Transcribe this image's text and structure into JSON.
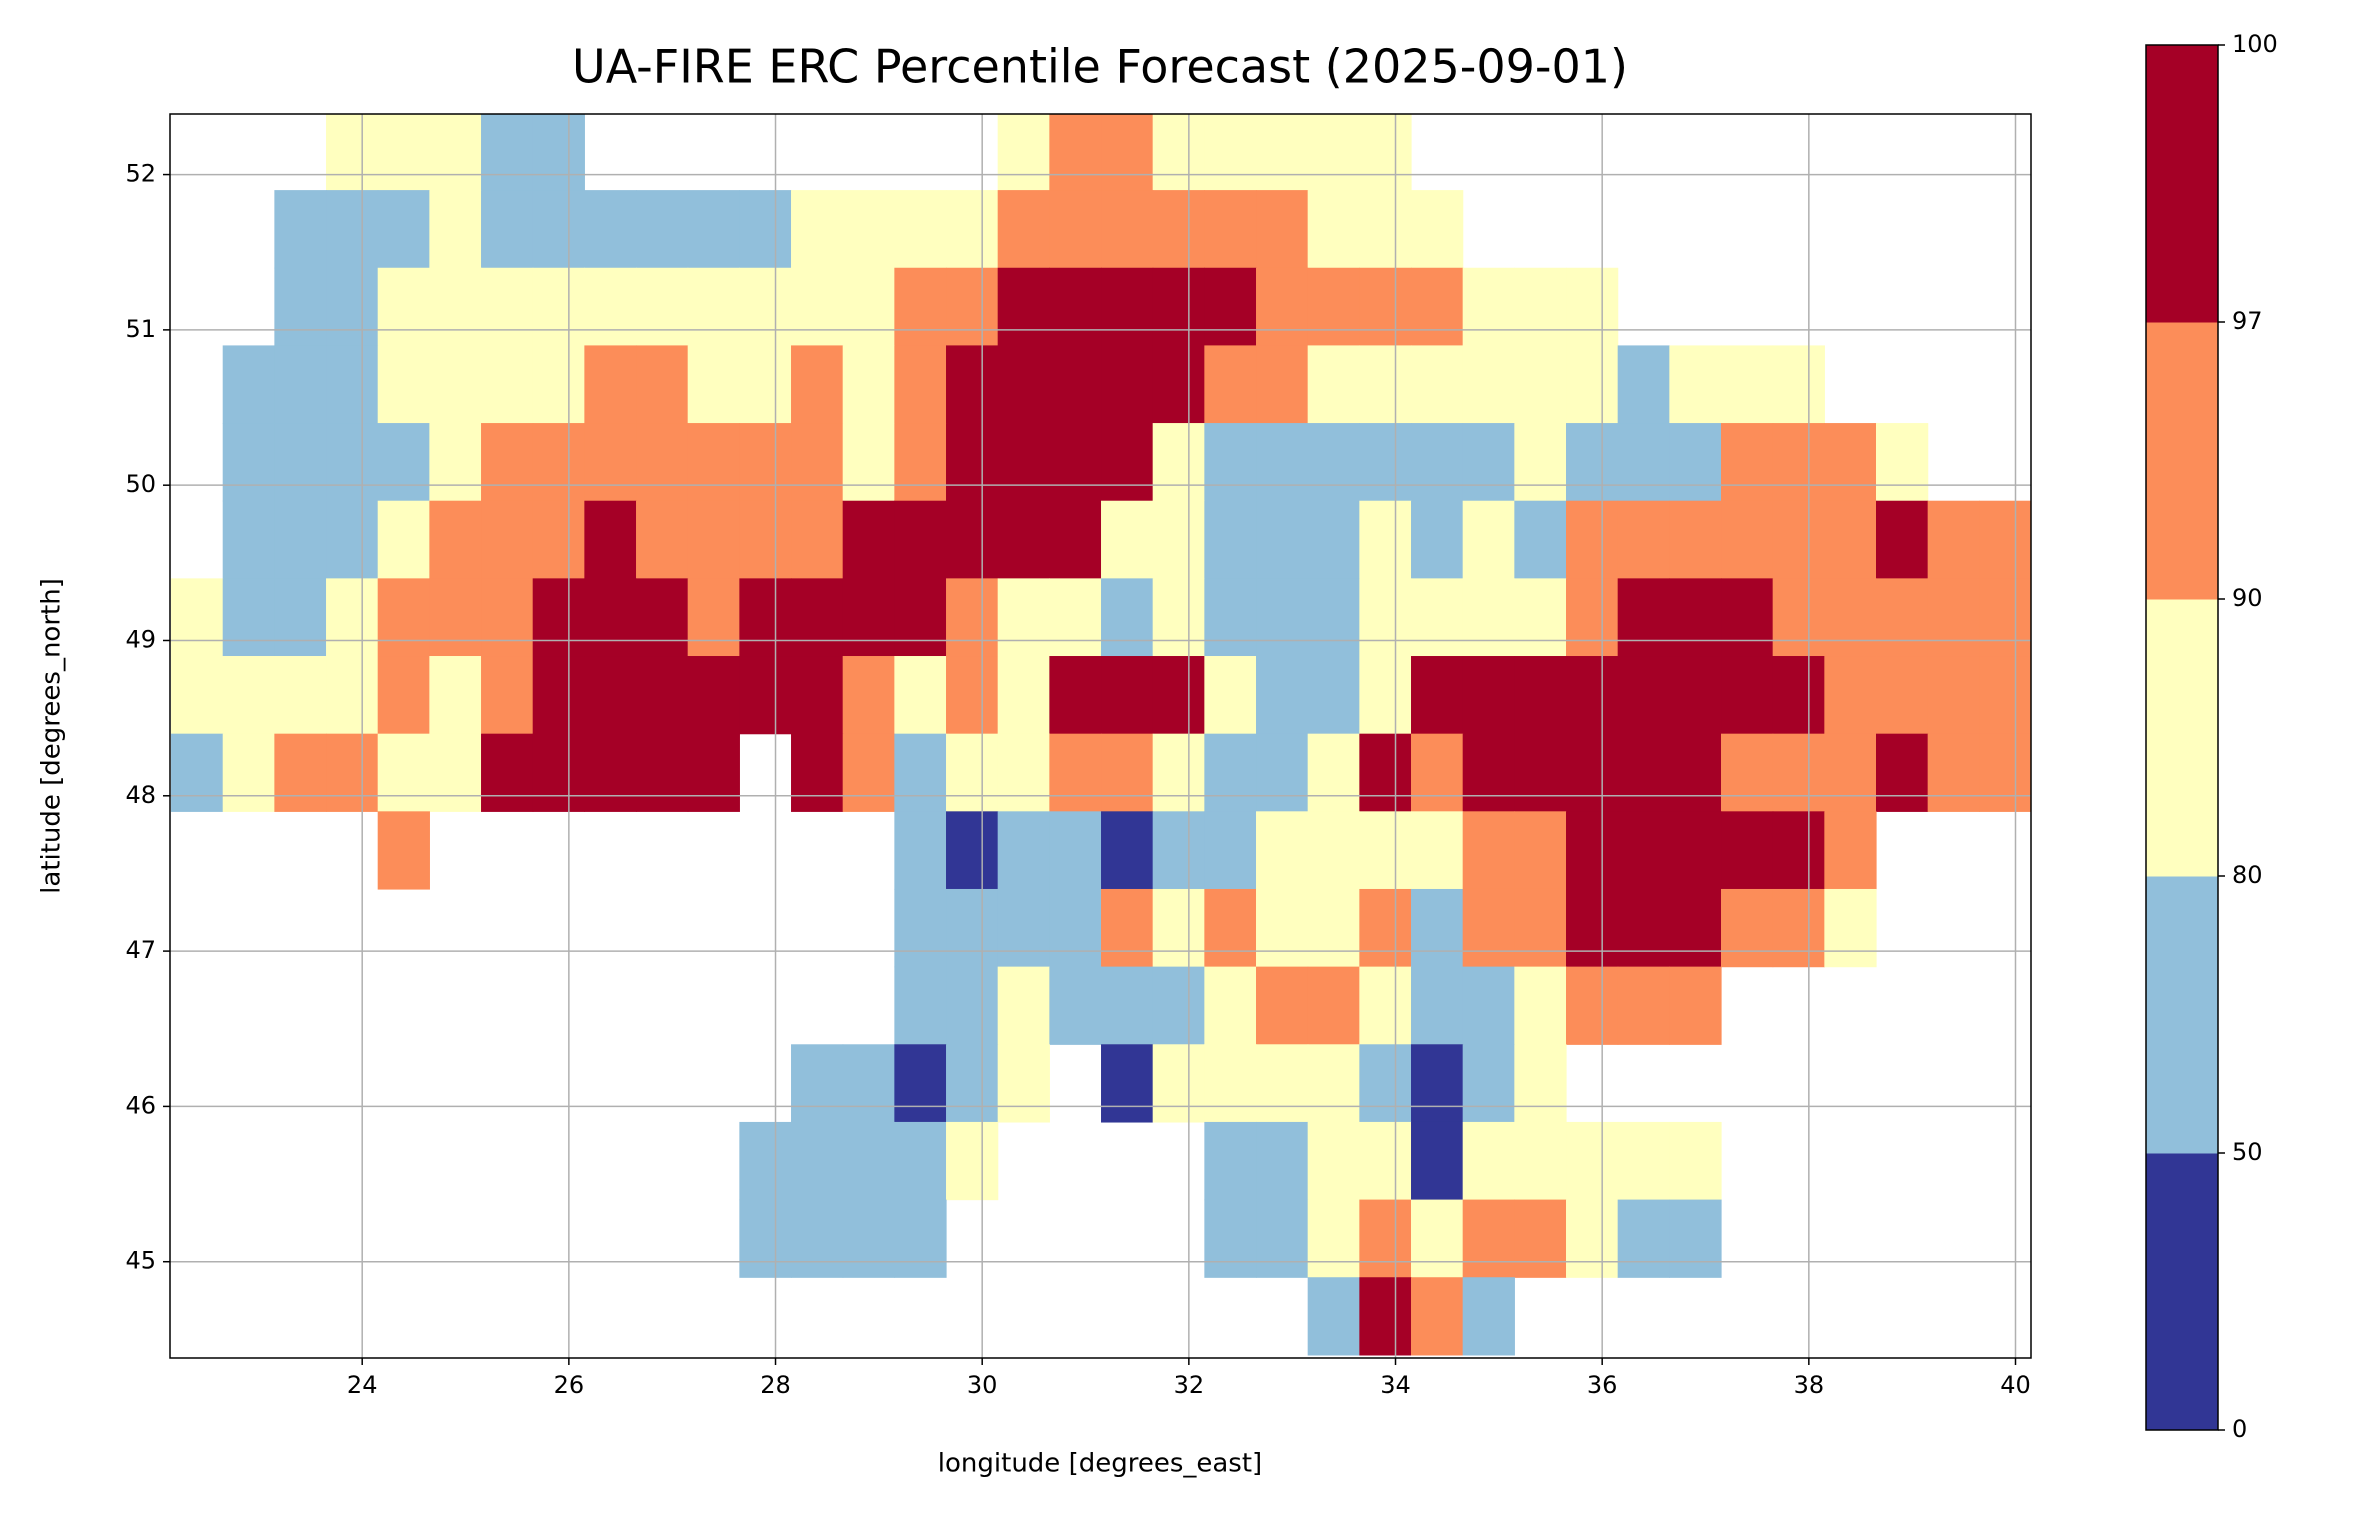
{
  "chart_data": {
    "type": "heatmap",
    "title": "UA-FIRE ERC Percentile Forecast (2025-09-01)",
    "xlabel": "longitude [degrees_east]",
    "ylabel": "latitude [degrees_north]",
    "xlim": [
      22.14,
      40.15
    ],
    "ylim": [
      44.38,
      52.39
    ],
    "xticks": [
      24,
      26,
      28,
      30,
      32,
      34,
      36,
      38,
      40
    ],
    "yticks": [
      45,
      46,
      47,
      48,
      49,
      50,
      51,
      52
    ],
    "grid": true,
    "x": [
      22.4,
      22.9,
      23.4,
      23.9,
      24.4,
      24.9,
      25.4,
      25.9,
      26.4,
      26.9,
      27.4,
      27.9,
      28.4,
      28.9,
      29.4,
      29.9,
      30.4,
      30.9,
      31.4,
      31.9,
      32.4,
      32.9,
      33.4,
      33.9,
      34.4,
      34.9,
      35.4,
      35.9,
      36.4,
      36.9,
      37.4,
      37.9,
      38.4,
      38.9,
      39.4,
      39.9
    ],
    "y": [
      52.15,
      51.65,
      51.15,
      50.65,
      50.15,
      49.65,
      49.15,
      48.65,
      48.15,
      47.65,
      47.15,
      46.65,
      46.15,
      45.65,
      45.15,
      44.65
    ],
    "values": [
      [
        null,
        null,
        null,
        85,
        85,
        85,
        65,
        65,
        null,
        null,
        null,
        null,
        null,
        null,
        null,
        null,
        85,
        93,
        93,
        85,
        85,
        85,
        85,
        85,
        null,
        null,
        null,
        null,
        null,
        null,
        null,
        null,
        null,
        null,
        null,
        null
      ],
      [
        null,
        null,
        65,
        65,
        65,
        85,
        65,
        65,
        65,
        65,
        65,
        65,
        85,
        85,
        85,
        85,
        93,
        93,
        93,
        93,
        93,
        93,
        85,
        85,
        85,
        null,
        null,
        null,
        null,
        null,
        null,
        null,
        null,
        null,
        null,
        null
      ],
      [
        null,
        null,
        65,
        65,
        85,
        85,
        85,
        85,
        85,
        85,
        85,
        85,
        85,
        85,
        93,
        93,
        98,
        98,
        98,
        98,
        98,
        93,
        93,
        93,
        93,
        85,
        85,
        85,
        null,
        null,
        null,
        null,
        null,
        null,
        null,
        null
      ],
      [
        null,
        65,
        65,
        65,
        85,
        85,
        85,
        85,
        93,
        93,
        85,
        85,
        93,
        85,
        93,
        98,
        98,
        98,
        98,
        98,
        93,
        93,
        85,
        85,
        85,
        85,
        85,
        85,
        65,
        85,
        85,
        85,
        null,
        null,
        null,
        null
      ],
      [
        null,
        65,
        65,
        65,
        65,
        85,
        93,
        93,
        93,
        93,
        93,
        93,
        93,
        85,
        93,
        98,
        98,
        98,
        98,
        85,
        65,
        65,
        65,
        65,
        65,
        65,
        85,
        65,
        65,
        65,
        93,
        93,
        93,
        85,
        null,
        null
      ],
      [
        null,
        65,
        65,
        65,
        85,
        93,
        93,
        93,
        98,
        93,
        93,
        93,
        93,
        98,
        98,
        98,
        98,
        98,
        85,
        85,
        65,
        65,
        65,
        85,
        65,
        85,
        65,
        93,
        93,
        93,
        93,
        93,
        93,
        98,
        93,
        93
      ],
      [
        85,
        65,
        65,
        85,
        93,
        93,
        93,
        98,
        98,
        98,
        93,
        98,
        98,
        98,
        98,
        93,
        85,
        85,
        65,
        85,
        65,
        65,
        65,
        85,
        85,
        85,
        85,
        93,
        98,
        98,
        98,
        93,
        93,
        93,
        93,
        93
      ],
      [
        85,
        85,
        85,
        85,
        93,
        85,
        93,
        98,
        98,
        98,
        98,
        98,
        98,
        93,
        85,
        93,
        85,
        98,
        98,
        98,
        85,
        65,
        65,
        85,
        98,
        98,
        98,
        98,
        98,
        98,
        98,
        98,
        93,
        93,
        93,
        93
      ],
      [
        65,
        85,
        93,
        93,
        85,
        85,
        98,
        98,
        98,
        98,
        98,
        null,
        98,
        93,
        65,
        85,
        85,
        93,
        93,
        85,
        65,
        65,
        85,
        98,
        93,
        98,
        98,
        98,
        98,
        98,
        93,
        93,
        93,
        98,
        93,
        93
      ],
      [
        null,
        null,
        null,
        null,
        93,
        null,
        null,
        null,
        null,
        null,
        null,
        null,
        null,
        null,
        65,
        25,
        65,
        65,
        25,
        65,
        65,
        85,
        85,
        85,
        85,
        93,
        93,
        98,
        98,
        98,
        98,
        98,
        93,
        null,
        null,
        null
      ],
      [
        null,
        null,
        null,
        null,
        null,
        null,
        null,
        null,
        null,
        null,
        null,
        null,
        null,
        null,
        65,
        65,
        65,
        65,
        93,
        85,
        93,
        85,
        85,
        93,
        65,
        93,
        93,
        98,
        98,
        98,
        93,
        93,
        85,
        null,
        null,
        null
      ],
      [
        null,
        null,
        null,
        null,
        null,
        null,
        null,
        null,
        null,
        null,
        null,
        null,
        null,
        null,
        65,
        65,
        85,
        65,
        65,
        65,
        85,
        93,
        93,
        85,
        65,
        65,
        85,
        93,
        93,
        93,
        null,
        null,
        null,
        null,
        null,
        null
      ],
      [
        null,
        null,
        null,
        null,
        null,
        null,
        null,
        null,
        null,
        null,
        null,
        null,
        65,
        65,
        25,
        65,
        85,
        null,
        25,
        85,
        85,
        85,
        85,
        65,
        25,
        65,
        85,
        null,
        null,
        null,
        null,
        null,
        null,
        null,
        null,
        null
      ],
      [
        null,
        null,
        null,
        null,
        null,
        null,
        null,
        null,
        null,
        null,
        null,
        65,
        65,
        65,
        65,
        85,
        null,
        null,
        null,
        null,
        65,
        65,
        85,
        85,
        25,
        85,
        85,
        85,
        85,
        85,
        null,
        null,
        null,
        null,
        null,
        null
      ],
      [
        null,
        null,
        null,
        null,
        null,
        null,
        null,
        null,
        null,
        null,
        null,
        65,
        65,
        65,
        65,
        null,
        null,
        null,
        null,
        null,
        65,
        65,
        85,
        93,
        85,
        93,
        93,
        85,
        65,
        65,
        null,
        null,
        null,
        null,
        null,
        null
      ],
      [
        null,
        null,
        null,
        null,
        null,
        null,
        null,
        null,
        null,
        null,
        null,
        null,
        null,
        null,
        null,
        null,
        null,
        null,
        null,
        null,
        null,
        null,
        65,
        98,
        93,
        65,
        null,
        null,
        null,
        null,
        null,
        null,
        null,
        null,
        null,
        null
      ]
    ],
    "colorbar": {
      "ticks": [
        0,
        50,
        80,
        90,
        97,
        100
      ],
      "colors": [
        "#313695",
        "#91bfdb",
        "#ffffbf",
        "#fc8d59",
        "#a50026"
      ]
    }
  }
}
